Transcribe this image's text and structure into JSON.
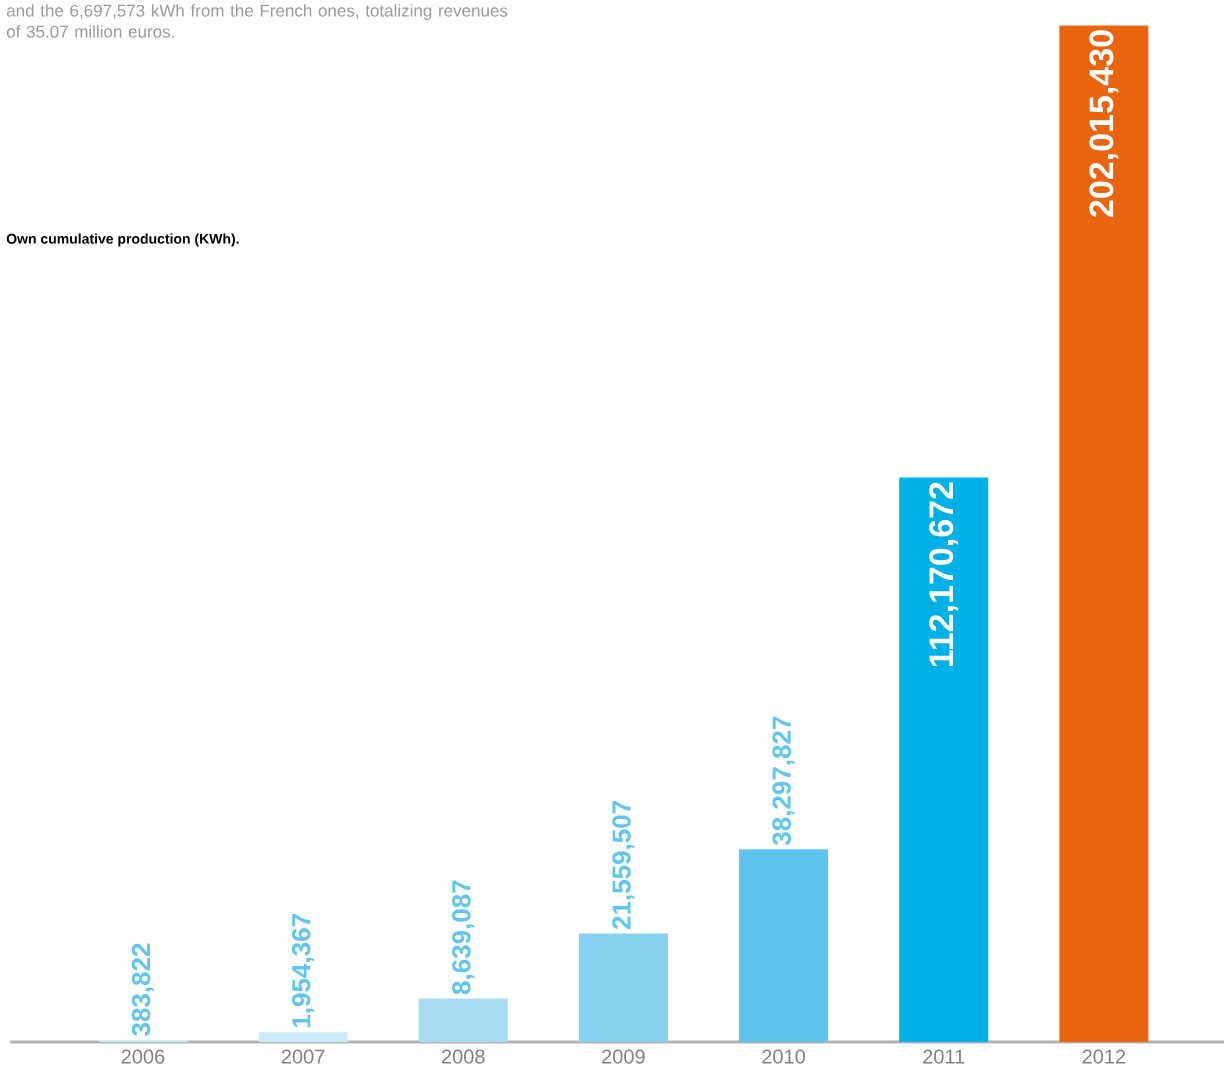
{
  "chart_data": {
    "type": "bar",
    "title": "Own cumulative production (KWh).",
    "annotations": [
      "and the 6,697,573 kWh from the French ones, totalizing revenues of 35.07 million euros."
    ],
    "categories": [
      "2006",
      "2007",
      "2008",
      "2009",
      "2010",
      "2011",
      "2012"
    ],
    "values": [
      383822,
      1954367,
      8639087,
      21559507,
      38297827,
      112170672,
      202015430
    ],
    "value_labels": [
      "383,822",
      "1,954,367",
      "8,639,087",
      "21,559,507",
      "38,297,827",
      "112,170,672",
      "202,015,430"
    ],
    "colors": [
      "#c8ebf9",
      "#c8ebf9",
      "#a6dcf3",
      "#87d1f0",
      "#5ec5ee",
      "#00b0e6",
      "#e8640f"
    ]
  }
}
